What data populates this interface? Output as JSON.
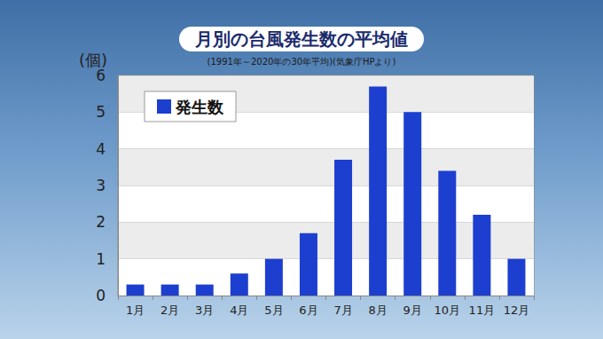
{
  "chart_data": {
    "type": "bar",
    "title": "月別の台風発生数の平均値",
    "subtitle": "(1991年～2020年の30年平均)(気象庁HPより)",
    "y_label": "(個)",
    "categories": [
      "1月",
      "2月",
      "3月",
      "4月",
      "5月",
      "6月",
      "7月",
      "8月",
      "9月",
      "10月",
      "11月",
      "12月"
    ],
    "series": [
      {
        "name": "発生数",
        "color": "#1c3fd0",
        "values": [
          0.3,
          0.3,
          0.3,
          0.6,
          1.0,
          1.7,
          3.7,
          5.7,
          5.0,
          3.4,
          2.2,
          1.0
        ]
      }
    ],
    "ylim": [
      0,
      6
    ],
    "yticks": [
      0,
      1,
      2,
      3,
      4,
      5,
      6
    ],
    "grid": true,
    "legend": "upper left"
  }
}
